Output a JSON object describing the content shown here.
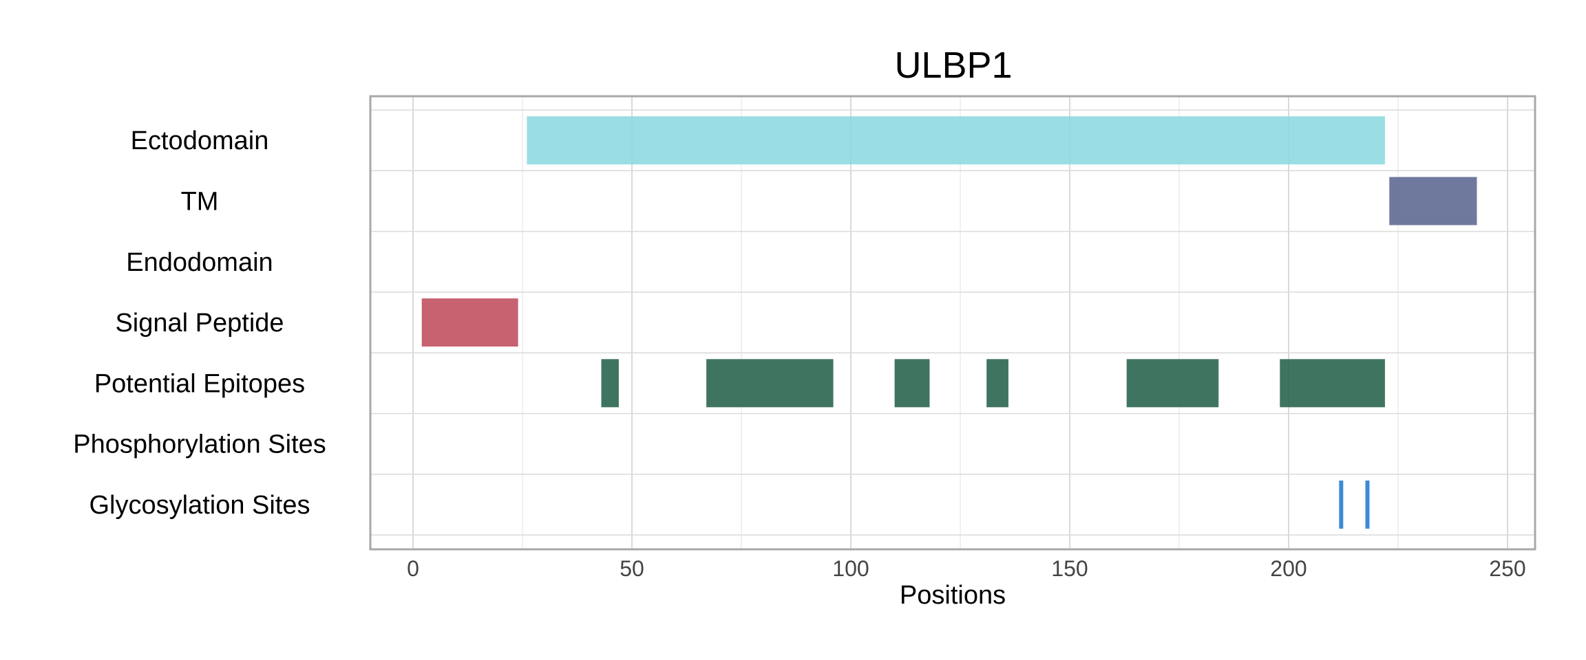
{
  "chart_data": {
    "type": "bar",
    "orientation": "horizontal-range",
    "title": "ULBP1",
    "xlabel": "Positions",
    "ylabel": "",
    "xlim": [
      -10,
      258
    ],
    "xticks": [
      0,
      50,
      100,
      150,
      200,
      250
    ],
    "grid": true,
    "legend": "none",
    "categories": [
      "Ectodomain",
      "TM",
      "Endodomain",
      "Signal Peptide",
      "Potential Epitopes",
      "Phosphorylation Sites",
      "Glycosylation Sites"
    ],
    "series": [
      {
        "category": "Ectodomain",
        "color": "#8dd8e0",
        "ranges": [
          [
            26,
            222
          ]
        ]
      },
      {
        "category": "TM",
        "color": "#5b6690",
        "ranges": [
          [
            223,
            243
          ]
        ]
      },
      {
        "category": "Endodomain",
        "color": "#5b6690",
        "ranges": []
      },
      {
        "category": "Signal Peptide",
        "color": "#bf4c5c",
        "ranges": [
          [
            2,
            24
          ]
        ]
      },
      {
        "category": "Potential Epitopes",
        "color": "#24624a",
        "ranges": [
          [
            43,
            47
          ],
          [
            67,
            96
          ],
          [
            110,
            118
          ],
          [
            131,
            136
          ],
          [
            163,
            184
          ],
          [
            198,
            222
          ]
        ]
      },
      {
        "category": "Phosphorylation Sites",
        "color": "#3d8bd4",
        "ranges": []
      },
      {
        "category": "Glycosylation Sites",
        "color": "#3d8bd4",
        "sites": [
          212,
          218
        ]
      }
    ]
  }
}
